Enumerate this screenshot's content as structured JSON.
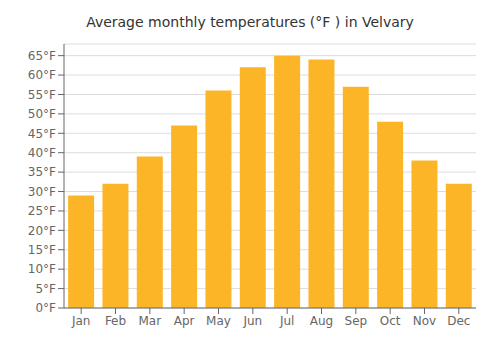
{
  "chart_data": {
    "type": "bar",
    "title": "Average monthly temperatures (°F ) in Velvary",
    "categories": [
      "Jan",
      "Feb",
      "Mar",
      "Apr",
      "May",
      "Jun",
      "Jul",
      "Aug",
      "Sep",
      "Oct",
      "Nov",
      "Dec"
    ],
    "values": [
      29,
      32,
      39,
      47,
      56,
      62,
      65,
      64,
      57,
      48,
      38,
      32
    ],
    "color": "#FDB528",
    "ylim": [
      0,
      68
    ],
    "yticks": [
      {
        "value": 0,
        "label": "0°F"
      },
      {
        "value": 5,
        "label": "5°F"
      },
      {
        "value": 10,
        "label": "10°F"
      },
      {
        "value": 15,
        "label": "15°F"
      },
      {
        "value": 20,
        "label": "20°F"
      },
      {
        "value": 25,
        "label": "25°F"
      },
      {
        "value": 30,
        "label": "30°F"
      },
      {
        "value": 35,
        "label": "35°F"
      },
      {
        "value": 40,
        "label": "40°F"
      },
      {
        "value": 45,
        "label": "45°F"
      },
      {
        "value": 50,
        "label": "50°F"
      },
      {
        "value": 55,
        "label": "55°F"
      },
      {
        "value": 60,
        "label": "60°F"
      },
      {
        "value": 65,
        "label": "65°F"
      }
    ],
    "grid": true
  }
}
